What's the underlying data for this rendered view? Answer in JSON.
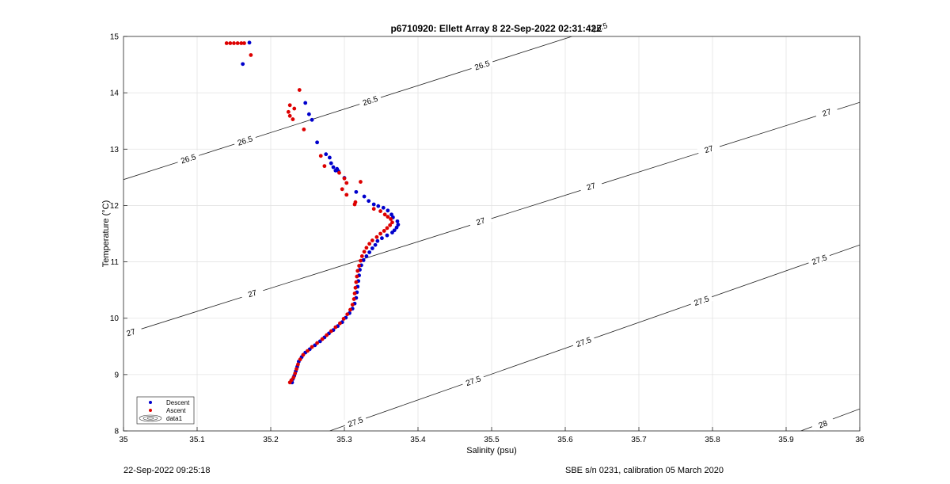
{
  "chart_data": {
    "type": "scatter",
    "title": "p6710920: Ellett Array 8 22-Sep-2022 02:31:42Z",
    "xlabel": "Salinity (psu)",
    "ylabel": "Temperature (°C)",
    "xlim": [
      35,
      36
    ],
    "ylim": [
      8,
      15
    ],
    "x_ticks": [
      "35",
      "35.1",
      "35.2",
      "35.3",
      "35.4",
      "35.5",
      "35.6",
      "35.7",
      "35.8",
      "35.9",
      "36"
    ],
    "y_ticks": [
      "8",
      "9",
      "10",
      "11",
      "12",
      "13",
      "14",
      "15"
    ],
    "grid": true,
    "legend": {
      "placement": "bottom-left",
      "entries": [
        "Descent",
        "Ascent",
        "data1"
      ]
    },
    "series": [
      {
        "name": "Descent",
        "color": "#0000cc",
        "marker": "dot",
        "points": [
          [
            35.171,
            14.89
          ],
          [
            35.162,
            14.51
          ],
          [
            35.247,
            13.82
          ],
          [
            35.252,
            13.62
          ],
          [
            35.256,
            13.52
          ],
          [
            35.263,
            13.12
          ],
          [
            35.275,
            12.91
          ],
          [
            35.28,
            12.85
          ],
          [
            35.282,
            12.75
          ],
          [
            35.285,
            12.68
          ],
          [
            35.288,
            12.62
          ],
          [
            35.29,
            12.65
          ],
          [
            35.292,
            12.61
          ],
          [
            35.3,
            12.49
          ],
          [
            35.316,
            12.24
          ],
          [
            35.327,
            12.16
          ],
          [
            35.333,
            12.08
          ],
          [
            35.34,
            12.02
          ],
          [
            35.346,
            11.99
          ],
          [
            35.353,
            11.96
          ],
          [
            35.359,
            11.91
          ],
          [
            35.364,
            11.84
          ],
          [
            35.366,
            11.79
          ],
          [
            35.372,
            11.72
          ],
          [
            35.373,
            11.66
          ],
          [
            35.371,
            11.61
          ],
          [
            35.368,
            11.56
          ],
          [
            35.365,
            11.52
          ],
          [
            35.358,
            11.47
          ],
          [
            35.351,
            11.42
          ],
          [
            35.345,
            11.37
          ],
          [
            35.342,
            11.3
          ],
          [
            35.338,
            11.24
          ],
          [
            35.334,
            11.17
          ],
          [
            35.33,
            11.1
          ],
          [
            35.326,
            11.03
          ],
          [
            35.323,
            10.94
          ],
          [
            35.321,
            10.86
          ],
          [
            35.32,
            10.76
          ],
          [
            35.319,
            10.66
          ],
          [
            35.318,
            10.56
          ],
          [
            35.317,
            10.46
          ],
          [
            35.316,
            10.36
          ],
          [
            35.314,
            10.26
          ],
          [
            35.311,
            10.17
          ],
          [
            35.307,
            10.09
          ],
          [
            35.302,
            10.01
          ],
          [
            35.297,
            9.93
          ],
          [
            35.291,
            9.86
          ],
          [
            35.285,
            9.79
          ],
          [
            35.279,
            9.73
          ],
          [
            35.273,
            9.66
          ],
          [
            35.267,
            9.59
          ],
          [
            35.26,
            9.52
          ],
          [
            35.253,
            9.45
          ],
          [
            35.247,
            9.39
          ],
          [
            35.242,
            9.31
          ],
          [
            35.238,
            9.23
          ],
          [
            35.236,
            9.14
          ],
          [
            35.234,
            9.06
          ],
          [
            35.232,
            8.98
          ],
          [
            35.23,
            8.92
          ],
          [
            35.229,
            8.86
          ]
        ]
      },
      {
        "name": "Ascent",
        "color": "#dd0000",
        "marker": "dot",
        "points": [
          [
            35.14,
            14.88
          ],
          [
            35.145,
            14.88
          ],
          [
            35.15,
            14.88
          ],
          [
            35.155,
            14.88
          ],
          [
            35.16,
            14.88
          ],
          [
            35.164,
            14.88
          ],
          [
            35.173,
            14.67
          ],
          [
            35.239,
            14.05
          ],
          [
            35.226,
            13.78
          ],
          [
            35.232,
            13.72
          ],
          [
            35.224,
            13.66
          ],
          [
            35.226,
            13.59
          ],
          [
            35.23,
            13.53
          ],
          [
            35.245,
            13.35
          ],
          [
            35.268,
            12.88
          ],
          [
            35.273,
            12.7
          ],
          [
            35.293,
            12.58
          ],
          [
            35.3,
            12.48
          ],
          [
            35.303,
            12.4
          ],
          [
            35.322,
            12.42
          ],
          [
            35.297,
            12.29
          ],
          [
            35.303,
            12.19
          ],
          [
            35.315,
            12.06
          ],
          [
            35.314,
            12.02
          ],
          [
            35.34,
            11.94
          ],
          [
            35.349,
            11.9
          ],
          [
            35.355,
            11.84
          ],
          [
            35.359,
            11.8
          ],
          [
            35.363,
            11.76
          ],
          [
            35.365,
            11.7
          ],
          [
            35.362,
            11.65
          ],
          [
            35.358,
            11.6
          ],
          [
            35.354,
            11.55
          ],
          [
            35.349,
            11.5
          ],
          [
            35.344,
            11.44
          ],
          [
            35.338,
            11.38
          ],
          [
            35.334,
            11.32
          ],
          [
            35.33,
            11.25
          ],
          [
            35.327,
            11.18
          ],
          [
            35.324,
            11.1
          ],
          [
            35.322,
            11.02
          ],
          [
            35.32,
            10.93
          ],
          [
            35.318,
            10.84
          ],
          [
            35.317,
            10.74
          ],
          [
            35.316,
            10.64
          ],
          [
            35.315,
            10.54
          ],
          [
            35.314,
            10.44
          ],
          [
            35.313,
            10.34
          ],
          [
            35.311,
            10.24
          ],
          [
            35.308,
            10.15
          ],
          [
            35.304,
            10.07
          ],
          [
            35.299,
            9.99
          ],
          [
            35.294,
            9.91
          ],
          [
            35.288,
            9.84
          ],
          [
            35.282,
            9.77
          ],
          [
            35.276,
            9.7
          ],
          [
            35.27,
            9.63
          ],
          [
            35.263,
            9.56
          ],
          [
            35.256,
            9.49
          ],
          [
            35.25,
            9.42
          ],
          [
            35.244,
            9.35
          ],
          [
            35.24,
            9.27
          ],
          [
            35.237,
            9.18
          ],
          [
            35.235,
            9.1
          ],
          [
            35.233,
            9.02
          ],
          [
            35.231,
            8.95
          ],
          [
            35.228,
            8.9
          ],
          [
            35.226,
            8.86
          ]
        ]
      }
    ],
    "contours": [
      {
        "level": 26.5,
        "line": [
          [
            35.0,
            12.46
          ],
          [
            36.0,
            16.63
          ]
        ],
        "labels": [
          [
            35.088,
            12.83
          ],
          [
            35.165,
            13.15
          ],
          [
            35.335,
            13.86
          ],
          [
            35.487,
            14.49
          ],
          [
            35.647,
            15.16
          ]
        ]
      },
      {
        "level": 27,
        "line": [
          [
            35.0,
            9.71
          ],
          [
            36.0,
            13.83
          ]
        ],
        "labels": [
          [
            35.01,
            9.75
          ],
          [
            35.175,
            10.44
          ],
          [
            35.485,
            11.72
          ],
          [
            35.635,
            12.34
          ],
          [
            35.795,
            13.0
          ],
          [
            35.955,
            13.65
          ]
        ]
      },
      {
        "level": 27.5,
        "line": [
          [
            35.28,
            8.0
          ],
          [
            36.0,
            11.3
          ]
        ],
        "labels": [
          [
            35.315,
            8.16
          ],
          [
            35.475,
            8.89
          ],
          [
            35.625,
            9.58
          ],
          [
            35.785,
            10.31
          ],
          [
            35.945,
            11.04
          ]
        ]
      },
      {
        "level": 28,
        "line": [
          [
            35.92,
            8.0
          ],
          [
            36.0,
            8.39
          ]
        ],
        "labels": [
          [
            35.95,
            8.12
          ]
        ]
      }
    ]
  },
  "footer": {
    "left": "22-Sep-2022 09:25:18",
    "right": "SBE s/n 0231, calibration 05 March 2020"
  }
}
